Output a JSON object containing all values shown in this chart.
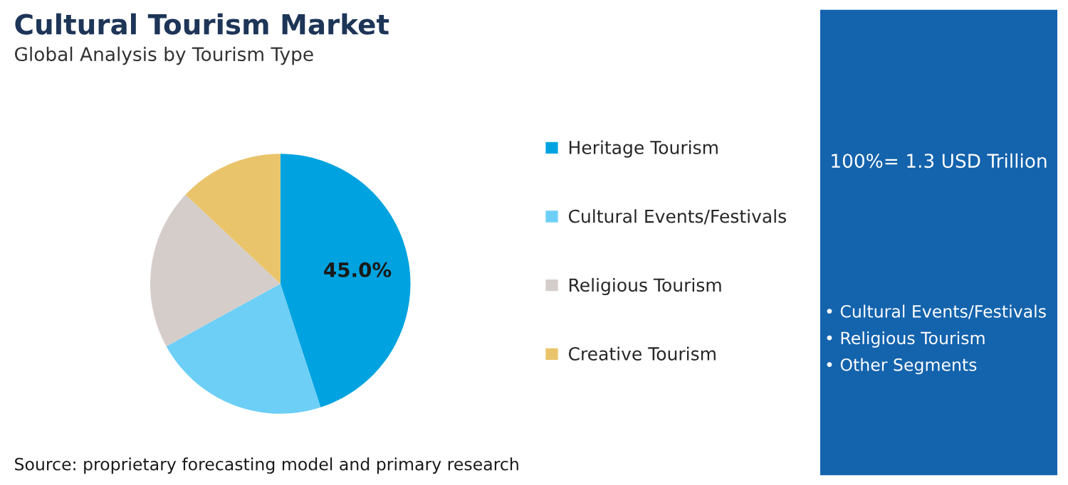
{
  "chart_data": {
    "type": "pie",
    "title": "Cultural Tourism Market",
    "subtitle": "Global Analysis by Tourism Type",
    "categories": [
      "Heritage Tourism",
      "Cultural Events/Festivals",
      "Religious Tourism",
      "Creative Tourism"
    ],
    "values": [
      45,
      22,
      20,
      13
    ],
    "colors": [
      "#00a3e0",
      "#6dcff6",
      "#d5cdc9",
      "#e9c46a"
    ],
    "value_labels": [
      "45.0%",
      null,
      null,
      null
    ],
    "legend": "right",
    "annotations": [
      "100%= 1.3 USD Trillion",
      "• Cultural Events/Festivals",
      "• Religious Tourism",
      "• Other Segments",
      "Source: proprietary forecasting model and primary research"
    ]
  }
}
